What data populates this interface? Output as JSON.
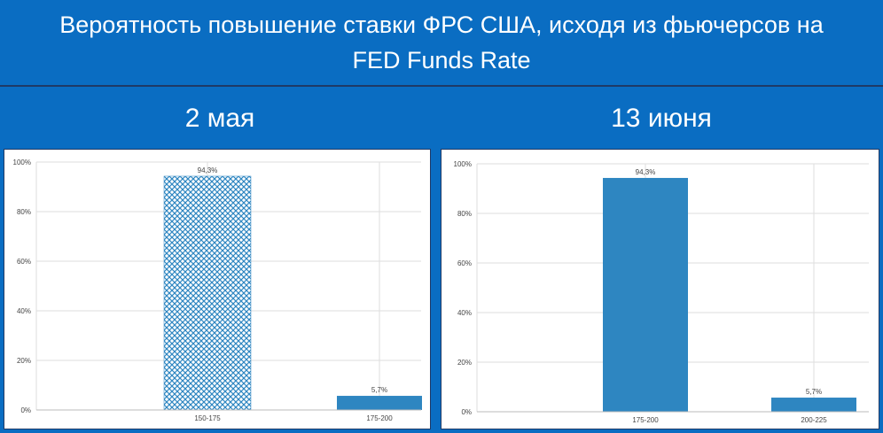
{
  "title": "Вероятность повышение ставки ФРС США, исходя из фьючерсов на FED Funds Rate",
  "colors": {
    "background": "#0a6dc2",
    "bar": "#2e86c1",
    "grid": "#dddddd"
  },
  "chart_data": [
    {
      "type": "bar",
      "panel_title": "2 мая",
      "categories": [
        "150-175",
        "175-200"
      ],
      "values": [
        94.3,
        5.7
      ],
      "data_labels": [
        "94,3%",
        "5,7%"
      ],
      "bar_styles": [
        "crosshatch",
        "solid"
      ],
      "yticks": [
        "0%",
        "20%",
        "40%",
        "60%",
        "80%",
        "100%"
      ],
      "ylim": [
        0,
        100
      ],
      "grid": true
    },
    {
      "type": "bar",
      "panel_title": "13 июня",
      "categories": [
        "175-200",
        "200-225"
      ],
      "values": [
        94.3,
        5.7
      ],
      "data_labels": [
        "94,3%",
        "5,7%"
      ],
      "bar_styles": [
        "solid",
        "solid"
      ],
      "yticks": [
        "0%",
        "20%",
        "40%",
        "60%",
        "80%",
        "100%"
      ],
      "ylim": [
        0,
        100
      ],
      "grid": true
    }
  ]
}
